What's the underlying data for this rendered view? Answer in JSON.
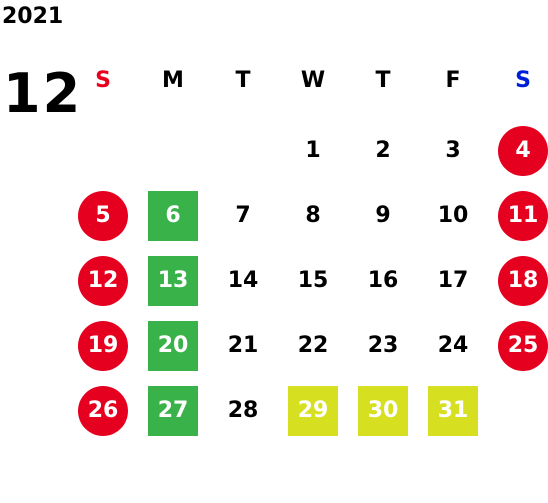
{
  "calendar": {
    "year": "2021",
    "month": "12",
    "weekdays": [
      "S",
      "M",
      "T",
      "W",
      "T",
      "F",
      "S"
    ],
    "weeks": [
      [
        {
          "day": "",
          "style": "none"
        },
        {
          "day": "",
          "style": "none"
        },
        {
          "day": "",
          "style": "none"
        },
        {
          "day": "1",
          "style": "plain"
        },
        {
          "day": "2",
          "style": "plain"
        },
        {
          "day": "3",
          "style": "plain"
        },
        {
          "day": "4",
          "style": "holiday"
        }
      ],
      [
        {
          "day": "5",
          "style": "holiday"
        },
        {
          "day": "6",
          "style": "green"
        },
        {
          "day": "7",
          "style": "plain"
        },
        {
          "day": "8",
          "style": "plain"
        },
        {
          "day": "9",
          "style": "plain"
        },
        {
          "day": "10",
          "style": "plain"
        },
        {
          "day": "11",
          "style": "holiday"
        }
      ],
      [
        {
          "day": "12",
          "style": "holiday"
        },
        {
          "day": "13",
          "style": "green"
        },
        {
          "day": "14",
          "style": "plain"
        },
        {
          "day": "15",
          "style": "plain"
        },
        {
          "day": "16",
          "style": "plain"
        },
        {
          "day": "17",
          "style": "plain"
        },
        {
          "day": "18",
          "style": "holiday"
        }
      ],
      [
        {
          "day": "19",
          "style": "holiday"
        },
        {
          "day": "20",
          "style": "green"
        },
        {
          "day": "21",
          "style": "plain"
        },
        {
          "day": "22",
          "style": "plain"
        },
        {
          "day": "23",
          "style": "plain"
        },
        {
          "day": "24",
          "style": "plain"
        },
        {
          "day": "25",
          "style": "holiday"
        }
      ],
      [
        {
          "day": "26",
          "style": "holiday"
        },
        {
          "day": "27",
          "style": "green"
        },
        {
          "day": "28",
          "style": "plain"
        },
        {
          "day": "29",
          "style": "lime"
        },
        {
          "day": "30",
          "style": "lime"
        },
        {
          "day": "31",
          "style": "lime"
        },
        {
          "day": "",
          "style": "none"
        }
      ]
    ]
  },
  "colors": {
    "holiday_red": "#e5001f",
    "green_day": "#3ab24a",
    "lime_day": "#d6e020",
    "sunday_header": "#e8001c",
    "saturday_header": "#0020d8"
  }
}
